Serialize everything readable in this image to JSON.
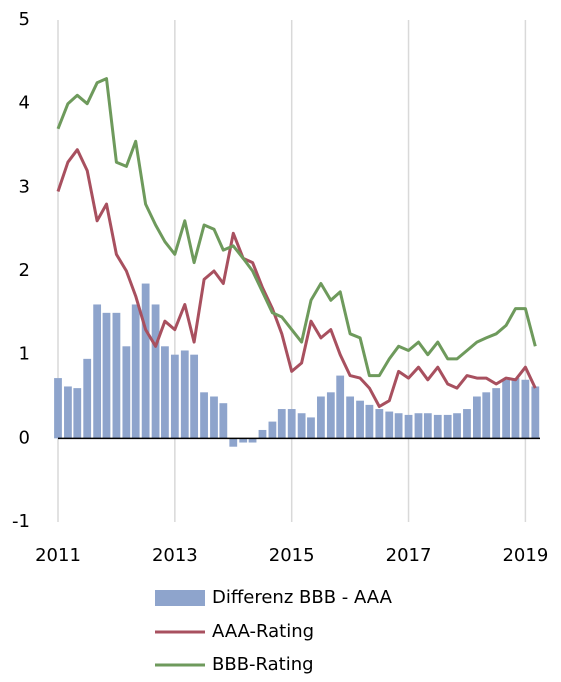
{
  "chart_data": {
    "type": "bar_line",
    "x": [
      2011,
      2011.17,
      2011.33,
      2011.5,
      2011.67,
      2011.83,
      2012,
      2012.17,
      2012.33,
      2012.5,
      2012.67,
      2012.83,
      2013,
      2013.17,
      2013.33,
      2013.5,
      2013.67,
      2013.83,
      2014,
      2014.17,
      2014.33,
      2014.5,
      2014.67,
      2014.83,
      2015,
      2015.17,
      2015.33,
      2015.5,
      2015.67,
      2015.83,
      2016,
      2016.17,
      2016.33,
      2016.5,
      2016.67,
      2016.83,
      2017,
      2017.17,
      2017.33,
      2017.5,
      2017.67,
      2017.83,
      2018,
      2018.17,
      2018.33,
      2018.5,
      2018.67,
      2018.83,
      2019,
      2019.17
    ],
    "series": [
      {
        "name": "Differenz BBB - AAA",
        "kind": "bar",
        "color": "#8ea4cc",
        "values": [
          0.72,
          0.62,
          0.6,
          0.95,
          1.6,
          1.5,
          1.5,
          1.1,
          1.6,
          1.85,
          1.6,
          1.1,
          1.0,
          1.05,
          1.0,
          0.55,
          0.5,
          0.42,
          -0.1,
          -0.05,
          -0.05,
          0.1,
          0.2,
          0.35,
          0.35,
          0.3,
          0.25,
          0.5,
          0.55,
          0.75,
          0.5,
          0.45,
          0.4,
          0.35,
          0.32,
          0.3,
          0.28,
          0.3,
          0.3,
          0.28,
          0.28,
          0.3,
          0.35,
          0.5,
          0.55,
          0.6,
          0.7,
          0.72,
          0.7,
          0.62
        ]
      },
      {
        "name": "AAA-Rating",
        "kind": "line",
        "color": "#a8505f",
        "values": [
          2.95,
          3.3,
          3.45,
          3.2,
          2.6,
          2.8,
          2.2,
          2.0,
          1.7,
          1.3,
          1.1,
          1.4,
          1.3,
          1.6,
          1.15,
          1.9,
          2.0,
          1.85,
          2.45,
          2.15,
          2.1,
          1.8,
          1.55,
          1.25,
          0.8,
          0.9,
          1.4,
          1.2,
          1.3,
          1.0,
          0.75,
          0.72,
          0.6,
          0.38,
          0.45,
          0.8,
          0.72,
          0.85,
          0.7,
          0.85,
          0.65,
          0.6,
          0.75,
          0.72,
          0.72,
          0.65,
          0.72,
          0.7,
          0.85,
          0.6
        ]
      },
      {
        "name": "BBB-Rating",
        "kind": "line",
        "color": "#6e9a5c",
        "values": [
          3.7,
          4.0,
          4.1,
          4.0,
          4.25,
          4.3,
          3.3,
          3.25,
          3.55,
          2.8,
          2.55,
          2.35,
          2.2,
          2.6,
          2.1,
          2.55,
          2.5,
          2.25,
          2.3,
          2.15,
          2.0,
          1.75,
          1.5,
          1.45,
          1.3,
          1.15,
          1.65,
          1.85,
          1.65,
          1.75,
          1.25,
          1.2,
          0.75,
          0.75,
          0.95,
          1.1,
          1.05,
          1.15,
          1.0,
          1.15,
          0.95,
          0.95,
          1.05,
          1.15,
          1.2,
          1.25,
          1.35,
          1.55,
          1.55,
          1.1
        ]
      }
    ],
    "xlim": [
      2011,
      2019.25
    ],
    "xticks": [
      2011,
      2013,
      2015,
      2017,
      2019
    ],
    "ylim": [
      -1,
      5
    ],
    "yticks": [
      -1,
      0,
      1,
      2,
      3,
      4,
      5
    ],
    "grid": true
  }
}
